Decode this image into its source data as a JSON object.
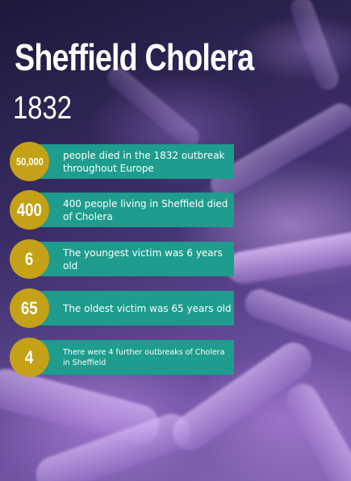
{
  "title": "Sheffield Cholera",
  "year": "1832",
  "facts": [
    {
      "number": "50,000",
      "text": "people died in the 1832 outbreak throughout Europe"
    },
    {
      "number": "400",
      "text": "400 people living in Sheffield died of Cholera"
    },
    {
      "number": "6",
      "text": "The youngest victim was 6 years old"
    },
    {
      "number": "65",
      "text": "The oldest victim was 65 years old"
    },
    {
      "number": "4",
      "text": "There were 4 further outbreaks of Cholera in Sheffield"
    }
  ],
  "colors": {
    "bar": "#1e9c8e",
    "circle": "#c4a116",
    "text": "#ffffff"
  }
}
